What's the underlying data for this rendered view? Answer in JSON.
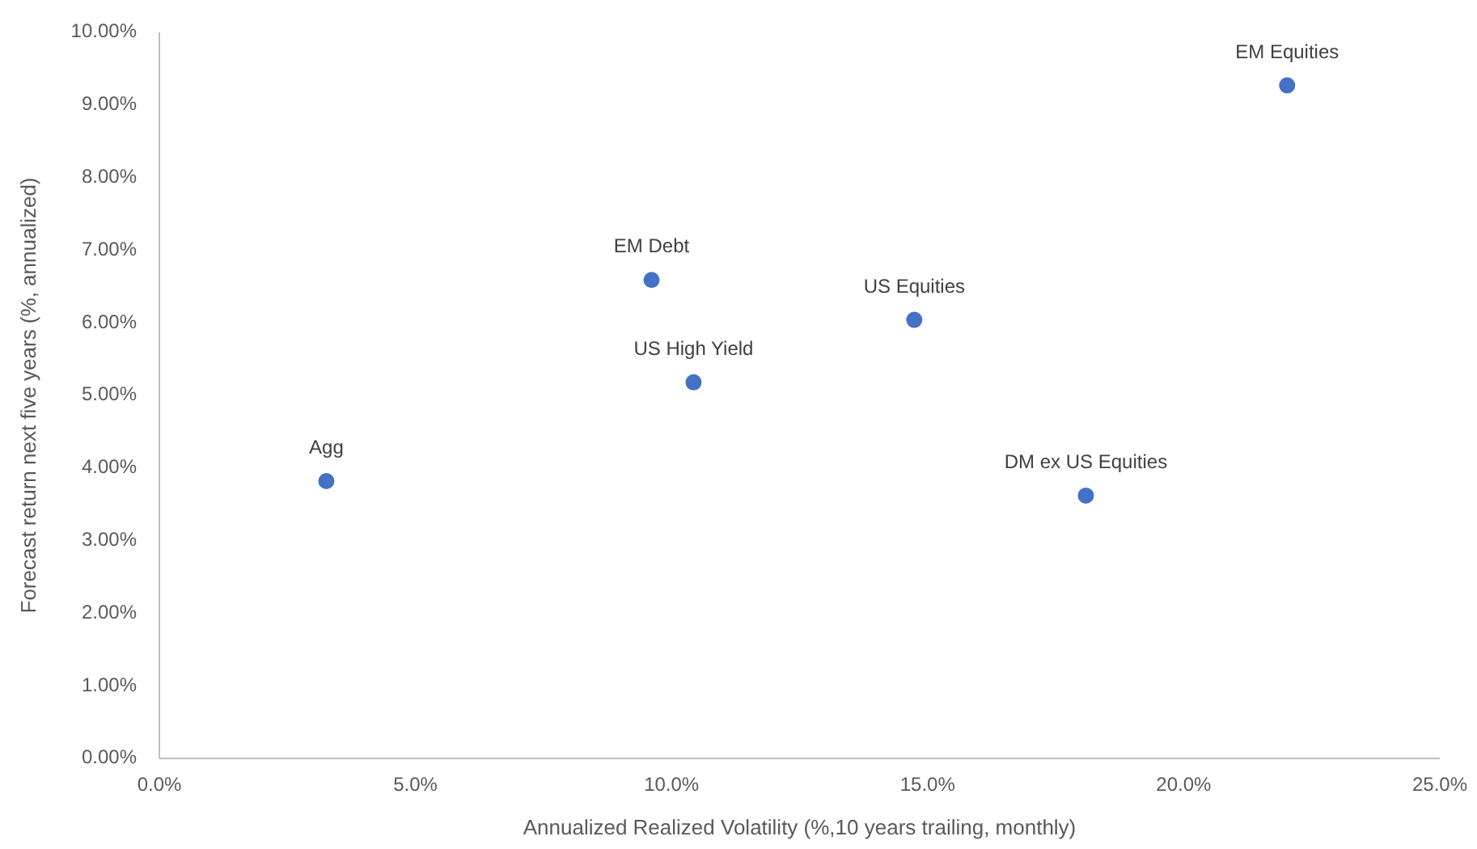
{
  "chart_data": {
    "type": "scatter",
    "xlabel": "Annualized Realized Volatility (%,10 years trailing, monthly)",
    "ylabel": "Forecast return next five years (%, annualized)",
    "x": [
      3.26,
      9.61,
      10.43,
      14.74,
      18.09,
      22.02
    ],
    "values": [
      3.82,
      6.59,
      5.18,
      6.04,
      3.62,
      9.27
    ],
    "color": "#4472c4",
    "marker": "circle",
    "grid": false,
    "xlim": [
      0,
      25
    ],
    "ylim": [
      0,
      10
    ],
    "xticks": [
      {
        "value": 0,
        "label": "0.0%"
      },
      {
        "value": 5,
        "label": "5.0%"
      },
      {
        "value": 10,
        "label": "10.0%"
      },
      {
        "value": 15,
        "label": "15.0%"
      },
      {
        "value": 20,
        "label": "20.0%"
      },
      {
        "value": 25,
        "label": "25.0%"
      }
    ],
    "yticks": [
      {
        "value": 0,
        "label": "0.00%"
      },
      {
        "value": 1,
        "label": "1.00%"
      },
      {
        "value": 2,
        "label": "2.00%"
      },
      {
        "value": 3,
        "label": "3.00%"
      },
      {
        "value": 4,
        "label": "4.00%"
      },
      {
        "value": 5,
        "label": "5.00%"
      },
      {
        "value": 6,
        "label": "6.00%"
      },
      {
        "value": 7,
        "label": "7.00%"
      },
      {
        "value": 8,
        "label": "8.00%"
      },
      {
        "value": 9,
        "label": "9.00%"
      },
      {
        "value": 10,
        "label": "10.00%"
      }
    ],
    "annotations": [
      {
        "text": "Agg",
        "x": 3.26,
        "y": 3.82
      },
      {
        "text": "EM Debt",
        "x": 9.61,
        "y": 6.59
      },
      {
        "text": "US High Yield",
        "x": 10.43,
        "y": 5.18
      },
      {
        "text": "US Equities",
        "x": 14.74,
        "y": 6.04
      },
      {
        "text": "DM ex US Equities",
        "x": 18.09,
        "y": 3.62
      },
      {
        "text": "EM Equities",
        "x": 22.02,
        "y": 9.27
      }
    ]
  }
}
